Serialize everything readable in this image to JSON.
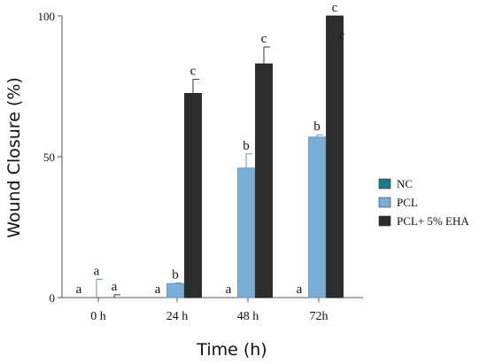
{
  "chart_data": {
    "type": "bar",
    "title": "",
    "xlabel": "Time (h)",
    "ylabel": "Wound Closure (%)",
    "ylim": [
      0,
      100
    ],
    "yticks": [
      0,
      50,
      100
    ],
    "grid": false,
    "legend_position": "right",
    "categories": [
      "0 h",
      "24 h",
      "48 h",
      "72h"
    ],
    "series": [
      {
        "name": "NC",
        "color": "#1b7a8a",
        "values": [
          0,
          0,
          0,
          0
        ],
        "errors": [
          0,
          0,
          0,
          0
        ],
        "labels": [
          "a",
          "a",
          "a",
          "a"
        ]
      },
      {
        "name": "PCL",
        "color": "#7aaed6",
        "values": [
          0,
          5,
          46,
          57
        ],
        "errors": [
          6.5,
          0.2,
          5,
          0.8
        ],
        "labels": [
          "a",
          "b",
          "b",
          "b"
        ]
      },
      {
        "name": "PCL+ 5% EHA",
        "color": "#2d2d2d",
        "values": [
          0,
          72.5,
          83,
          100
        ],
        "errors": [
          1,
          5,
          6,
          0
        ],
        "labels": [
          "a",
          "c",
          "c",
          "c"
        ]
      }
    ],
    "annotations": [
      "c"
    ]
  }
}
